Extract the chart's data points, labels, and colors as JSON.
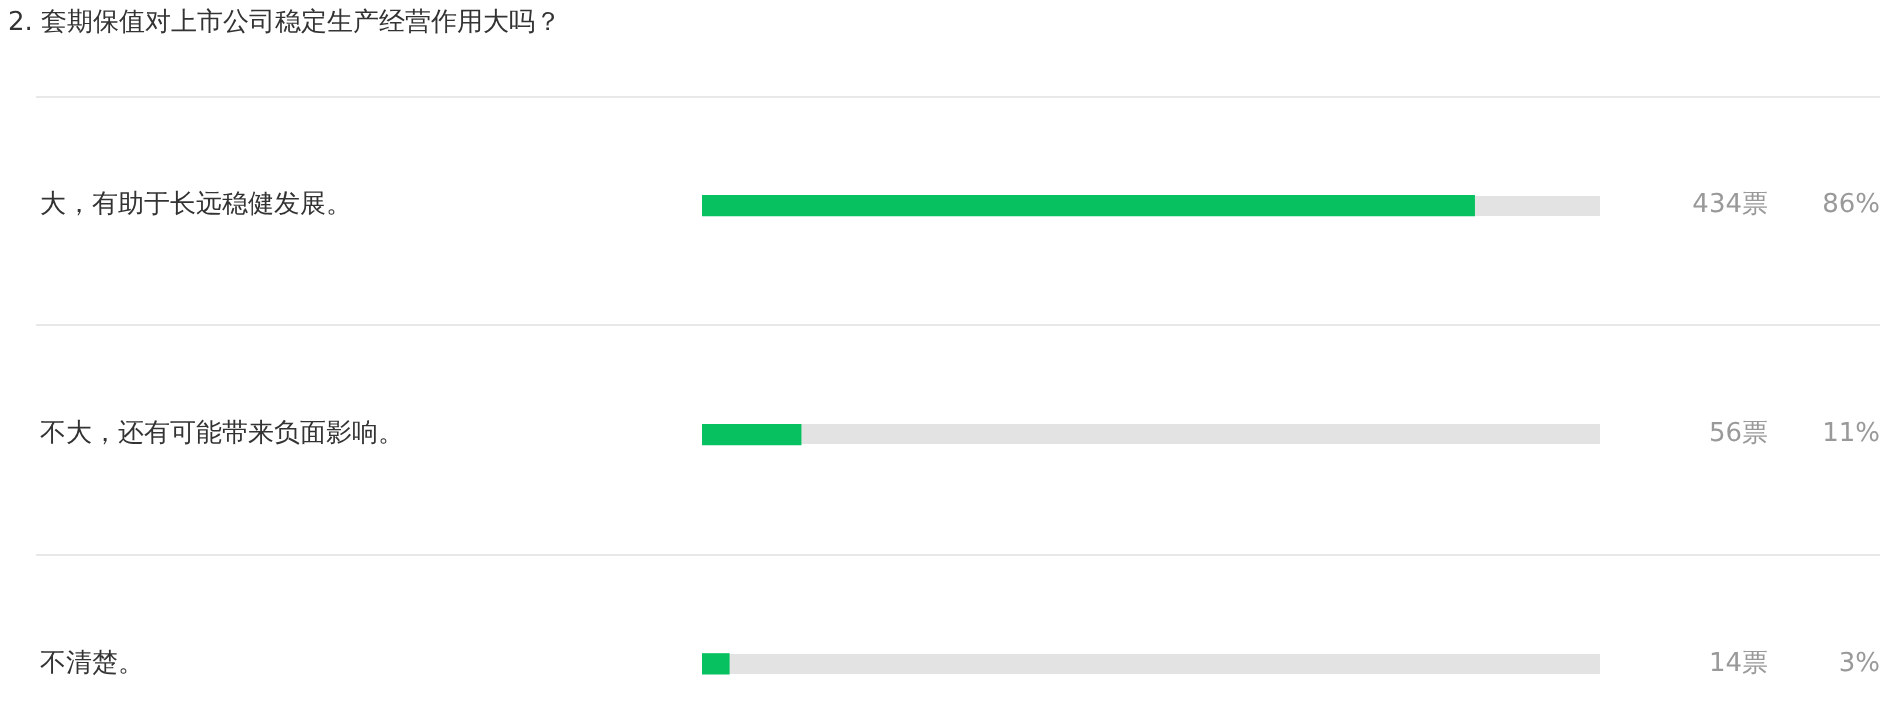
{
  "chart_data": {
    "type": "bar",
    "orientation": "horizontal",
    "title": "2. 套期保值对上市公司稳定生产经营作用大吗？",
    "categories": [
      "大，有助于长远稳健发展。",
      "不大，还有可能带来负面影响。",
      "不清楚。"
    ],
    "values": [
      86,
      11,
      3
    ],
    "color": "#07c160",
    "value_labels": [
      "86%",
      "11%",
      "3%"
    ],
    "annotations": [
      "434票",
      "56票",
      "14票"
    ],
    "xlim": [
      0,
      100
    ],
    "tick_labels": "y",
    "grid": false,
    "legend": false
  }
}
